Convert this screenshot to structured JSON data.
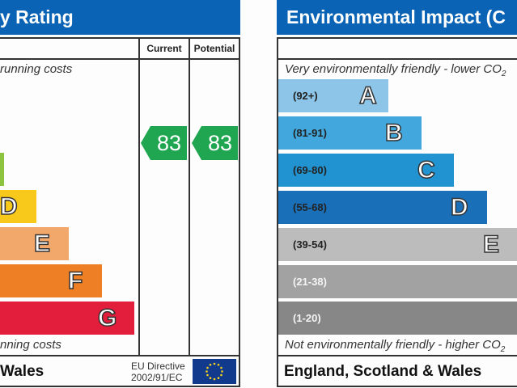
{
  "energy": {
    "title": "y Rating",
    "col_current": "Current",
    "col_potential": "Potential",
    "top_text": "running costs",
    "bottom_text": "nning costs",
    "current": "83",
    "potential": "83",
    "current_band_color": "#20a650",
    "bands": [
      {
        "letter": "D",
        "color": "#f8c81a"
      },
      {
        "letter": "E",
        "color": "#f2a86a"
      },
      {
        "letter": "F",
        "color": "#ee7f24"
      },
      {
        "letter": "G",
        "color": "#e31d3c"
      }
    ],
    "partial_band_color": "#8cc43f",
    "footer": "Wales",
    "directive_line1": "EU Directive",
    "directive_line2": "2002/91/EC"
  },
  "environment": {
    "title": "Environmental Impact (C",
    "top_text": "Very environmentally friendly - lower CO",
    "top_sub": "2",
    "bottom_text": "Not environmentally friendly - higher CO",
    "bottom_sub": "2",
    "bands": [
      {
        "range": "(92+)",
        "letter": "A",
        "color": "#8cc5e8"
      },
      {
        "range": "(81-91)",
        "letter": "B",
        "color": "#41a7dd"
      },
      {
        "range": "(69-80)",
        "letter": "C",
        "color": "#2293d1"
      },
      {
        "range": "(55-68)",
        "letter": "D",
        "color": "#1a6fb9"
      },
      {
        "range": "(39-54)",
        "letter": "E",
        "color": "#bcbcbc"
      },
      {
        "range": "(21-38)",
        "letter": "F",
        "color": "#a2a2a2"
      },
      {
        "range": "(1-20)",
        "letter": "G",
        "color": "#878787"
      }
    ],
    "footer": "England, Scotland & Wales"
  }
}
